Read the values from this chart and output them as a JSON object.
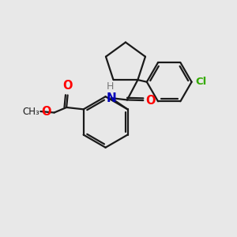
{
  "background_color": "#e8e8e8",
  "bond_color": "#1a1a1a",
  "line_width": 1.6,
  "figsize": [
    3.0,
    3.0
  ],
  "dpi": 100,
  "colors": {
    "O": "#ff0000",
    "N": "#0000bb",
    "Cl": "#33aa00",
    "H": "#777777",
    "C": "#1a1a1a"
  }
}
